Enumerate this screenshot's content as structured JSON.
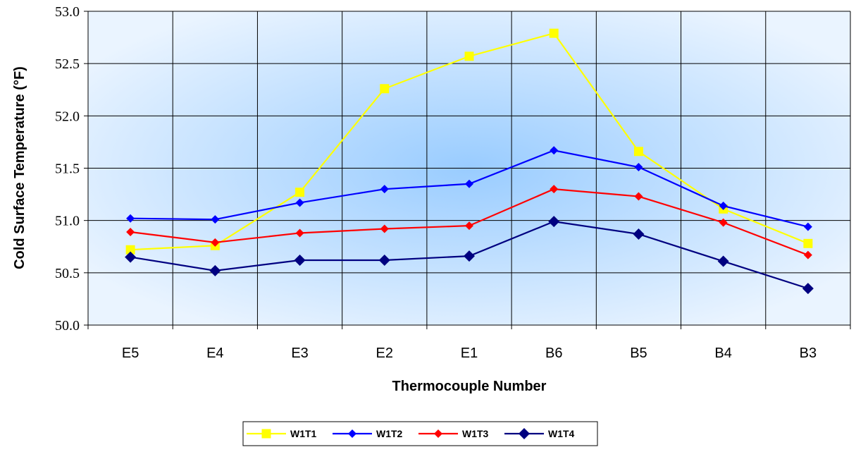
{
  "chart_data": {
    "type": "line",
    "categories": [
      "E5",
      "E4",
      "E3",
      "E2",
      "E1",
      "B6",
      "B5",
      "B4",
      "B3"
    ],
    "series": [
      {
        "name": "W1T1",
        "color": "#FFFF00",
        "marker": "square",
        "values": [
          50.72,
          50.76,
          51.27,
          52.26,
          52.57,
          52.79,
          51.66,
          51.11,
          50.78
        ]
      },
      {
        "name": "W1T2",
        "color": "#0000FF",
        "marker": "diamond",
        "values": [
          51.02,
          51.01,
          51.17,
          51.3,
          51.35,
          51.67,
          51.51,
          51.14,
          50.94
        ]
      },
      {
        "name": "W1T3",
        "color": "#FF0000",
        "marker": "diamond",
        "values": [
          50.89,
          50.79,
          50.88,
          50.92,
          50.95,
          51.3,
          51.23,
          50.98,
          50.67
        ]
      },
      {
        "name": "W1T4",
        "color": "#000080",
        "marker": "diamond-large",
        "values": [
          50.65,
          50.52,
          50.62,
          50.62,
          50.66,
          50.99,
          50.87,
          50.61,
          50.35
        ]
      }
    ],
    "xlabel": "Thermocouple Number",
    "ylabel": "Cold Surface Temperature (°F)",
    "ylim": [
      50.0,
      53.0
    ],
    "yticks": [
      "50.0",
      "50.5",
      "51.0",
      "51.5",
      "52.0",
      "52.5",
      "53.0"
    ],
    "grid": true,
    "legend": "bottom"
  }
}
